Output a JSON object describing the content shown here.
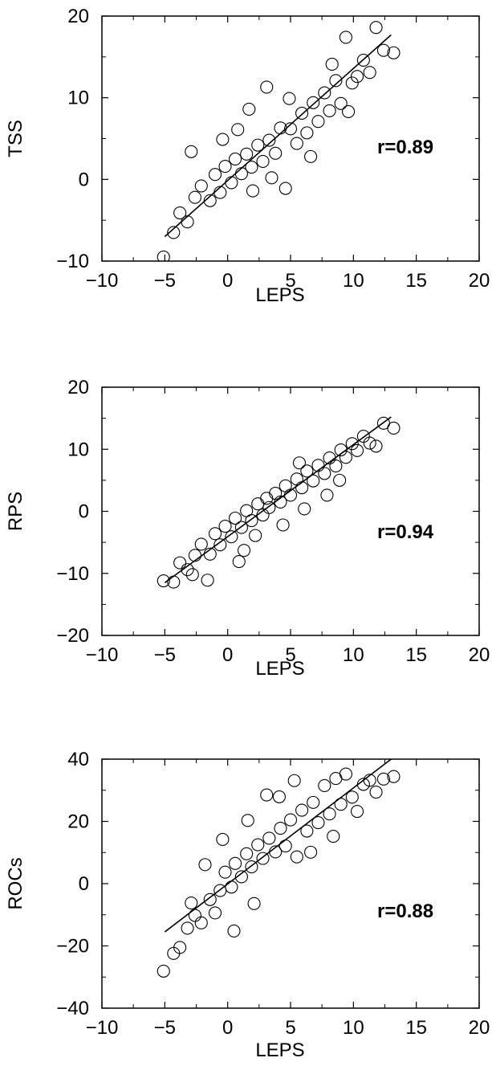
{
  "chart_data": [
    {
      "type": "scatter",
      "title": "",
      "xlabel": "LEPS",
      "ylabel": "TSS",
      "xlim": [
        -10,
        20
      ],
      "ylim": [
        -10,
        20
      ],
      "xticks": [
        "−10",
        "−5",
        "0",
        "5",
        "10",
        "15",
        "20"
      ],
      "yticks": [
        "−10",
        "0",
        "10",
        "20"
      ],
      "annotation": "r=0.89",
      "grid": false,
      "fit_line": {
        "x": [
          -5,
          13
        ],
        "y": [
          -7,
          17.7
        ]
      },
      "points": [
        [
          -5.1,
          -9.5
        ],
        [
          -4.3,
          -6.5
        ],
        [
          -3.8,
          -4.1
        ],
        [
          -3.2,
          -5.2
        ],
        [
          -2.6,
          -2.2
        ],
        [
          -2.1,
          -0.8
        ],
        [
          -1.4,
          -2.6
        ],
        [
          -1.0,
          0.6
        ],
        [
          -0.6,
          -1.6
        ],
        [
          -0.2,
          1.6
        ],
        [
          0.3,
          -0.4
        ],
        [
          0.6,
          2.5
        ],
        [
          1.1,
          0.7
        ],
        [
          1.5,
          3.1
        ],
        [
          1.9,
          1.5
        ],
        [
          2.4,
          4.2
        ],
        [
          2.8,
          2.2
        ],
        [
          3.1,
          11.3
        ],
        [
          3.3,
          4.8
        ],
        [
          3.8,
          3.2
        ],
        [
          4.2,
          6.3
        ],
        [
          4.6,
          -1.1
        ],
        [
          5.0,
          6.2
        ],
        [
          5.5,
          4.4
        ],
        [
          5.9,
          8.1
        ],
        [
          6.3,
          5.7
        ],
        [
          6.8,
          9.4
        ],
        [
          7.2,
          7.1
        ],
        [
          7.7,
          10.6
        ],
        [
          8.1,
          8.4
        ],
        [
          8.6,
          12.1
        ],
        [
          9.0,
          9.3
        ],
        [
          9.4,
          17.4
        ],
        [
          9.9,
          11.8
        ],
        [
          10.3,
          12.6
        ],
        [
          10.8,
          14.6
        ],
        [
          11.3,
          13.1
        ],
        [
          11.8,
          18.6
        ],
        [
          12.4,
          15.8
        ],
        [
          13.2,
          15.5
        ],
        [
          -2.9,
          3.4
        ],
        [
          0.8,
          6.1
        ],
        [
          2.0,
          -1.4
        ],
        [
          4.9,
          9.9
        ],
        [
          6.6,
          2.8
        ],
        [
          8.3,
          14.1
        ],
        [
          9.6,
          8.3
        ],
        [
          1.7,
          8.6
        ],
        [
          -0.4,
          4.9
        ],
        [
          3.5,
          0.2
        ]
      ]
    },
    {
      "type": "scatter",
      "title": "",
      "xlabel": "LEPS",
      "ylabel": "RPS",
      "xlim": [
        -10,
        20
      ],
      "ylim": [
        -20,
        20
      ],
      "xticks": [
        "−10",
        "−5",
        "0",
        "5",
        "10",
        "15",
        "20"
      ],
      "yticks": [
        "−20",
        "−10",
        "0",
        "10",
        "20"
      ],
      "annotation": "r=0.94",
      "grid": false,
      "fit_line": {
        "x": [
          -5,
          13
        ],
        "y": [
          -11.5,
          15.2
        ]
      },
      "points": [
        [
          -5.1,
          -11.2
        ],
        [
          -4.3,
          -11.4
        ],
        [
          -3.8,
          -8.3
        ],
        [
          -3.2,
          -9.4
        ],
        [
          -2.6,
          -7.1
        ],
        [
          -2.1,
          -5.3
        ],
        [
          -1.4,
          -6.9
        ],
        [
          -1.0,
          -3.6
        ],
        [
          -0.6,
          -5.4
        ],
        [
          -0.2,
          -2.4
        ],
        [
          0.3,
          -4.1
        ],
        [
          0.6,
          -1.1
        ],
        [
          1.1,
          -2.6
        ],
        [
          1.5,
          0.1
        ],
        [
          1.9,
          -1.5
        ],
        [
          2.4,
          1.2
        ],
        [
          2.8,
          -0.6
        ],
        [
          3.1,
          2.1
        ],
        [
          3.3,
          0.6
        ],
        [
          3.8,
          2.9
        ],
        [
          4.2,
          1.5
        ],
        [
          4.6,
          4.1
        ],
        [
          5.0,
          2.6
        ],
        [
          5.5,
          5.2
        ],
        [
          5.9,
          3.8
        ],
        [
          6.3,
          6.5
        ],
        [
          6.8,
          4.9
        ],
        [
          7.2,
          7.4
        ],
        [
          7.7,
          6.1
        ],
        [
          8.1,
          8.6
        ],
        [
          8.6,
          7.3
        ],
        [
          9.0,
          9.9
        ],
        [
          9.4,
          8.7
        ],
        [
          9.9,
          10.9
        ],
        [
          10.3,
          9.8
        ],
        [
          10.8,
          12.1
        ],
        [
          11.3,
          11.0
        ],
        [
          11.8,
          10.5
        ],
        [
          12.4,
          14.2
        ],
        [
          13.2,
          13.4
        ],
        [
          -2.8,
          -10.2
        ],
        [
          0.9,
          -8.1
        ],
        [
          2.2,
          -3.9
        ],
        [
          4.4,
          -2.2
        ],
        [
          6.1,
          0.4
        ],
        [
          7.9,
          2.6
        ],
        [
          1.3,
          -6.3
        ],
        [
          -1.6,
          -11.1
        ],
        [
          5.7,
          7.8
        ],
        [
          8.9,
          5.0
        ]
      ]
    },
    {
      "type": "scatter",
      "title": "",
      "xlabel": "LEPS",
      "ylabel": "ROCs",
      "xlim": [
        -10,
        20
      ],
      "ylim": [
        -40,
        40
      ],
      "xticks": [
        "−10",
        "−5",
        "0",
        "5",
        "10",
        "15",
        "20"
      ],
      "yticks": [
        "−40",
        "−20",
        "0",
        "20",
        "40"
      ],
      "annotation": "r=0.88",
      "grid": false,
      "fit_line": {
        "x": [
          -5,
          13
        ],
        "y": [
          -15.5,
          40
        ]
      },
      "points": [
        [
          -5.1,
          -28.1
        ],
        [
          -4.3,
          -22.4
        ],
        [
          -3.8,
          -20.5
        ],
        [
          -3.2,
          -14.3
        ],
        [
          -2.6,
          -10.2
        ],
        [
          -2.1,
          -12.6
        ],
        [
          -1.4,
          -5.1
        ],
        [
          -1.0,
          -9.4
        ],
        [
          -0.6,
          -2.2
        ],
        [
          -0.2,
          3.7
        ],
        [
          0.3,
          -1.1
        ],
        [
          0.6,
          6.5
        ],
        [
          1.1,
          2.2
        ],
        [
          1.5,
          9.6
        ],
        [
          1.9,
          5.4
        ],
        [
          2.4,
          12.5
        ],
        [
          2.8,
          8.1
        ],
        [
          3.1,
          28.5
        ],
        [
          3.3,
          14.6
        ],
        [
          3.8,
          10.2
        ],
        [
          4.2,
          17.8
        ],
        [
          4.6,
          12.1
        ],
        [
          5.0,
          20.5
        ],
        [
          5.5,
          8.6
        ],
        [
          5.9,
          23.6
        ],
        [
          6.3,
          16.9
        ],
        [
          6.8,
          26.1
        ],
        [
          7.2,
          19.6
        ],
        [
          7.7,
          31.5
        ],
        [
          8.1,
          22.4
        ],
        [
          8.6,
          33.8
        ],
        [
          9.0,
          25.5
        ],
        [
          9.4,
          35.2
        ],
        [
          9.9,
          27.8
        ],
        [
          10.3,
          23.2
        ],
        [
          10.8,
          31.9
        ],
        [
          11.3,
          33.2
        ],
        [
          11.8,
          29.4
        ],
        [
          12.4,
          33.6
        ],
        [
          13.2,
          34.4
        ],
        [
          -1.8,
          6.1
        ],
        [
          -0.4,
          14.2
        ],
        [
          0.5,
          -15.2
        ],
        [
          2.1,
          -6.4
        ],
        [
          4.1,
          27.9
        ],
        [
          6.6,
          10.1
        ],
        [
          8.4,
          15.2
        ],
        [
          1.6,
          20.3
        ],
        [
          -2.9,
          -6.2
        ],
        [
          5.3,
          33.1
        ]
      ]
    }
  ]
}
